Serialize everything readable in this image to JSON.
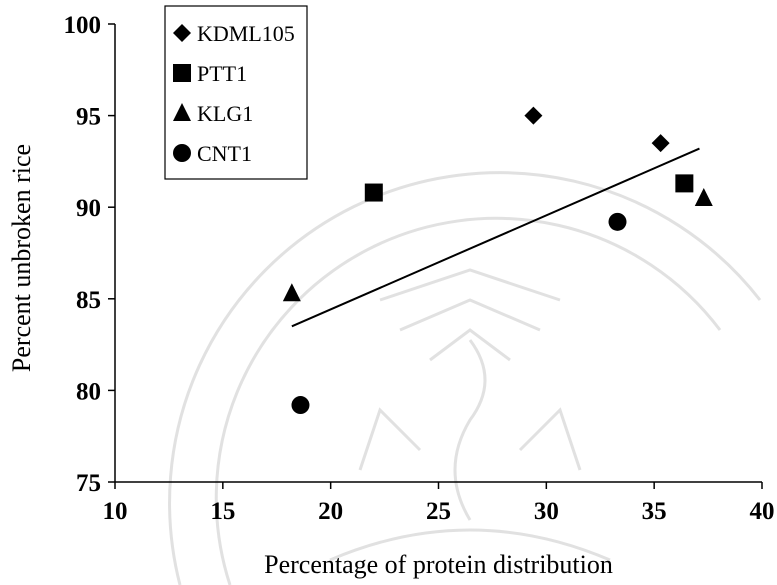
{
  "chart_data": {
    "type": "scatter",
    "xlabel": "Percentage of protein distribution",
    "ylabel": "Percent unbroken rice",
    "xlim": [
      10,
      40
    ],
    "ylim": [
      75,
      100
    ],
    "x_ticks": [
      10,
      15,
      20,
      25,
      30,
      35,
      40
    ],
    "y_ticks": [
      75,
      80,
      85,
      90,
      95,
      100
    ],
    "grid": false,
    "legend_position": "top-left",
    "series": [
      {
        "name": "KDML105",
        "marker": "diamond",
        "points": [
          {
            "x": 29.4,
            "y": 95.0
          },
          {
            "x": 35.3,
            "y": 93.5
          }
        ]
      },
      {
        "name": "PTT1",
        "marker": "square",
        "points": [
          {
            "x": 22.0,
            "y": 90.8
          },
          {
            "x": 36.4,
            "y": 91.3
          }
        ]
      },
      {
        "name": "KLG1",
        "marker": "triangle",
        "points": [
          {
            "x": 18.2,
            "y": 85.3
          },
          {
            "x": 37.3,
            "y": 90.5
          }
        ]
      },
      {
        "name": "CNT1",
        "marker": "circle",
        "points": [
          {
            "x": 18.6,
            "y": 79.2
          },
          {
            "x": 33.3,
            "y": 89.2
          }
        ]
      }
    ],
    "trendline": {
      "type": "linear",
      "x_start": 18.2,
      "y_start": 83.5,
      "x_end": 37.1,
      "y_end": 93.2
    }
  },
  "colors": {
    "marker": "#000000",
    "axis": "#000000",
    "watermark": "#c9c9c9"
  }
}
